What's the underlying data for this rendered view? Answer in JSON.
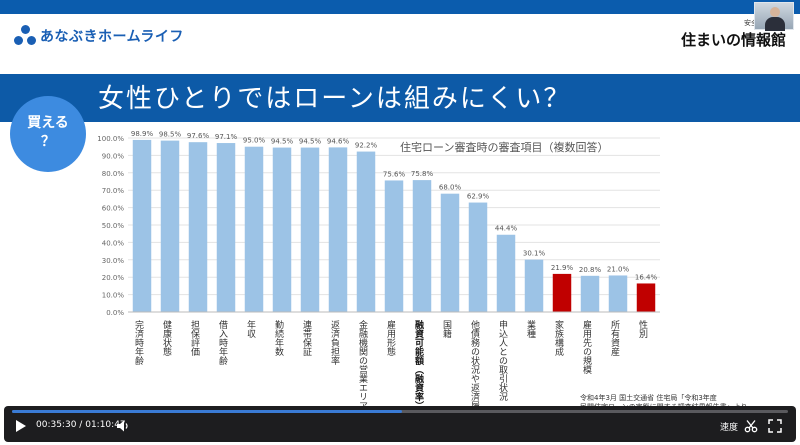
{
  "header": {
    "logo_text": "あなぶきホームライフ",
    "brand_tagline": "安全・安心の",
    "brand_name": "住まいの情報館"
  },
  "slide": {
    "title": "女性ひとりではローンは組みにくい？",
    "badge_line1": "買える",
    "badge_line2": "？",
    "chart_caption": "住宅ローン審査時の審査項目（複数回答）",
    "source_line1": "令和4年3月 国土交通省 住宅局「令和3年度",
    "source_line2": "民間住宅ローンの実態に関する調査結果報告書」より"
  },
  "colors": {
    "bar_default": "#9cc3e6",
    "bar_highlight": "#c00000",
    "title_band": "#0d5aa7",
    "badge": "#3d8be0"
  },
  "chart_data": {
    "type": "bar",
    "title": "住宅ローン審査時の審査項目（複数回答）",
    "categories": [
      "完済時年齢",
      "健康状態",
      "担保評価",
      "借入時年齢",
      "年収",
      "勤続年数",
      "連帯保証",
      "返済負担率",
      "金融機関の営業エリア",
      "雇用形態",
      "融資可能額（融資率）",
      "国籍",
      "他債務の状況や返済履歴",
      "申込人との取引状況",
      "業種",
      "家族構成",
      "雇用先の規模",
      "所有資産",
      "性別"
    ],
    "values": [
      98.9,
      98.5,
      97.6,
      97.1,
      95.0,
      94.5,
      94.5,
      94.6,
      92.2,
      75.6,
      75.8,
      68.0,
      62.9,
      44.4,
      30.1,
      21.9,
      20.8,
      21.0,
      16.4
    ],
    "highlighted": [
      "家族構成",
      "性別"
    ],
    "bold_categories": [
      "融資可能額（融資率）"
    ],
    "ylim": [
      0,
      100
    ],
    "y_ticks": [
      "0.0%",
      "10.0%",
      "20.0%",
      "30.0%",
      "40.0%",
      "50.0%",
      "60.0%",
      "70.0%",
      "80.0%",
      "90.0%",
      "100.0%"
    ],
    "value_labels": [
      "98.9%",
      "98.5%",
      "97.6%",
      "97.1%",
      "95.0%",
      "94.5%",
      "94.5%",
      "94.6%",
      "92.2%",
      "75.6%",
      "75.8%",
      "68.0%",
      "62.9%",
      "44.4%",
      "30.1%",
      "21.9%",
      "20.8%",
      "21.0%",
      "16.4%"
    ],
    "grid": true
  },
  "player": {
    "current_time": "00:35:30",
    "duration": "01:10:47",
    "time_separator": "/",
    "progress": 0.502,
    "speed_label": "速度"
  }
}
